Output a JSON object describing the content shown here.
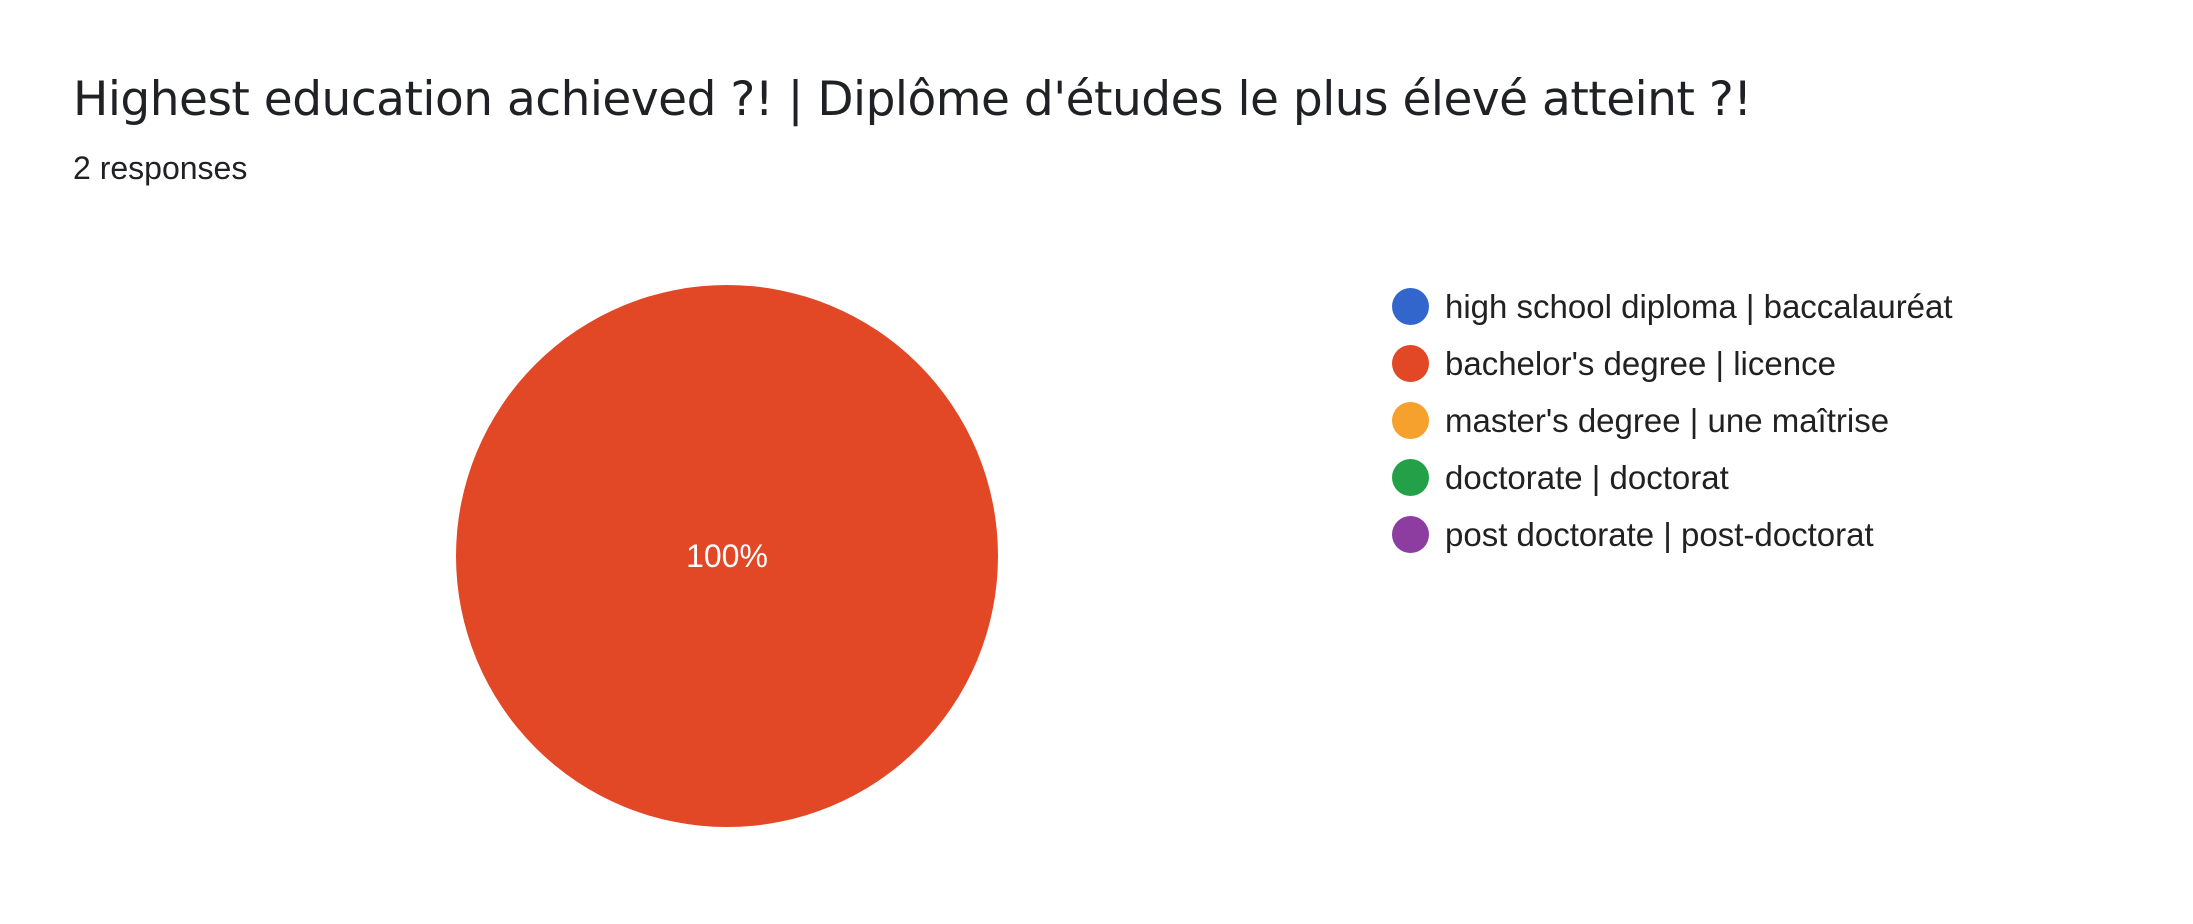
{
  "header": {
    "title": "Highest education achieved ?! | Diplôme d'études le plus élevé atteint ?!",
    "responses": "2 responses"
  },
  "chart_data": {
    "type": "pie",
    "categories": [
      "high school diploma | baccalauréat",
      "bachelor's degree | licence",
      "master's degree | une maîtrise",
      "doctorate | doctorat",
      "post doctorate | post-doctorat"
    ],
    "values": [
      0,
      2,
      0,
      0,
      0
    ],
    "colors": [
      "#3366cc",
      "#e24726",
      "#f6a02d",
      "#24a148",
      "#8c3d9f"
    ],
    "slice_labels": [
      "",
      "100%",
      "",
      "",
      ""
    ],
    "legend_position": "right",
    "title": "Highest education achieved ?! | Diplôme d'études le plus élevé atteint ?!"
  }
}
